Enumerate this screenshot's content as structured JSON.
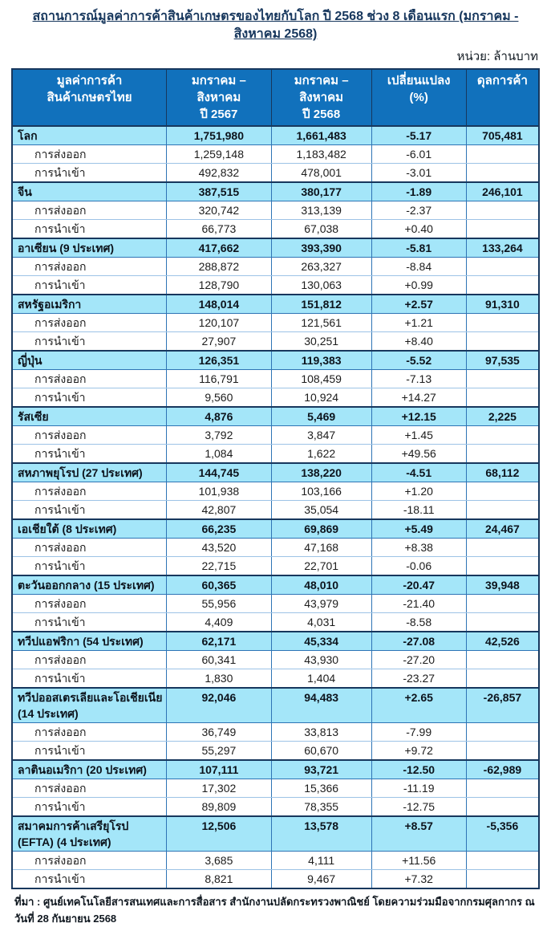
{
  "title": "สถานการณ์มูลค่าการค้าสินค้าเกษตรของไทยกับโลก ปี 2568 ช่วง 8 เดือนแรก (มกราคม - สิงหาคม 2568)",
  "unit_label": "หน่วย: ล้านบาท",
  "columns": [
    {
      "line1": "มูลค่าการค้า",
      "line2": "สินค้าเกษตรไทย"
    },
    {
      "line1": "มกราคม – สิงหาคม",
      "line2": "ปี 2567"
    },
    {
      "line1": "มกราคม – สิงหาคม",
      "line2": "ปี 2568"
    },
    {
      "line1": "เปลี่ยนแปลง",
      "line2": "(%)"
    },
    {
      "line1": "ดุลการค้า",
      "line2": ""
    }
  ],
  "row_labels": {
    "export": "การส่งออก",
    "import": "การนำเข้า"
  },
  "regions": [
    {
      "name": "โลก",
      "y2567": "1,751,980",
      "y2568": "1,661,483",
      "change": "-5.17",
      "balance": "705,481",
      "export": {
        "y2567": "1,259,148",
        "y2568": "1,183,482",
        "change": "-6.01"
      },
      "import": {
        "y2567": "492,832",
        "y2568": "478,001",
        "change": "-3.01"
      }
    },
    {
      "name": "จีน",
      "y2567": "387,515",
      "y2568": "380,177",
      "change": "-1.89",
      "balance": "246,101",
      "export": {
        "y2567": "320,742",
        "y2568": "313,139",
        "change": "-2.37"
      },
      "import": {
        "y2567": "66,773",
        "y2568": "67,038",
        "change": "+0.40"
      }
    },
    {
      "name": "อาเซียน (9 ประเทศ)",
      "y2567": "417,662",
      "y2568": "393,390",
      "change": "-5.81",
      "balance": "133,264",
      "export": {
        "y2567": "288,872",
        "y2568": "263,327",
        "change": "-8.84"
      },
      "import": {
        "y2567": "128,790",
        "y2568": "130,063",
        "change": "+0.99"
      }
    },
    {
      "name": "สหรัฐอเมริกา",
      "y2567": "148,014",
      "y2568": "151,812",
      "change": "+2.57",
      "balance": "91,310",
      "export": {
        "y2567": "120,107",
        "y2568": "121,561",
        "change": "+1.21"
      },
      "import": {
        "y2567": "27,907",
        "y2568": "30,251",
        "change": "+8.40"
      }
    },
    {
      "name": "ญี่ปุ่น",
      "y2567": "126,351",
      "y2568": "119,383",
      "change": "-5.52",
      "balance": "97,535",
      "export": {
        "y2567": "116,791",
        "y2568": "108,459",
        "change": "-7.13"
      },
      "import": {
        "y2567": "9,560",
        "y2568": "10,924",
        "change": "+14.27"
      }
    },
    {
      "name": "รัสเซีย",
      "y2567": "4,876",
      "y2568": "5,469",
      "change": "+12.15",
      "balance": "2,225",
      "export": {
        "y2567": "3,792",
        "y2568": "3,847",
        "change": "+1.45"
      },
      "import": {
        "y2567": "1,084",
        "y2568": "1,622",
        "change": "+49.56"
      }
    },
    {
      "name": "สหภาพยุโรป (27 ประเทศ)",
      "y2567": "144,745",
      "y2568": "138,220",
      "change": "-4.51",
      "balance": "68,112",
      "export": {
        "y2567": "101,938",
        "y2568": "103,166",
        "change": "+1.20"
      },
      "import": {
        "y2567": "42,807",
        "y2568": "35,054",
        "change": "-18.11"
      }
    },
    {
      "name": "เอเชียใต้ (8 ประเทศ)",
      "y2567": "66,235",
      "y2568": "69,869",
      "change": "+5.49",
      "balance": "24,467",
      "export": {
        "y2567": "43,520",
        "y2568": "47,168",
        "change": "+8.38"
      },
      "import": {
        "y2567": "22,715",
        "y2568": "22,701",
        "change": "-0.06"
      }
    },
    {
      "name": "ตะวันออกกลาง (15 ประเทศ)",
      "y2567": "60,365",
      "y2568": "48,010",
      "change": "-20.47",
      "balance": "39,948",
      "export": {
        "y2567": "55,956",
        "y2568": "43,979",
        "change": "-21.40"
      },
      "import": {
        "y2567": "4,409",
        "y2568": "4,031",
        "change": "-8.58"
      }
    },
    {
      "name": "ทวีปแอฟริกา (54 ประเทศ)",
      "y2567": "62,171",
      "y2568": "45,334",
      "change": "-27.08",
      "balance": "42,526",
      "export": {
        "y2567": "60,341",
        "y2568": "43,930",
        "change": "-27.20"
      },
      "import": {
        "y2567": "1,830",
        "y2568": "1,404",
        "change": "-23.27"
      }
    },
    {
      "name": "ทวีปออสเตรเลียและโอเชียเนีย (14 ประเทศ)",
      "y2567": "92,046",
      "y2568": "94,483",
      "change": "+2.65",
      "balance": "-26,857",
      "export": {
        "y2567": "36,749",
        "y2568": "33,813",
        "change": "-7.99"
      },
      "import": {
        "y2567": "55,297",
        "y2568": "60,670",
        "change": "+9.72"
      }
    },
    {
      "name": "ลาตินอเมริกา (20 ประเทศ)",
      "y2567": "107,111",
      "y2568": "93,721",
      "change": "-12.50",
      "balance": "-62,989",
      "export": {
        "y2567": "17,302",
        "y2568": "15,366",
        "change": "-11.19"
      },
      "import": {
        "y2567": "89,809",
        "y2568": "78,355",
        "change": "-12.75"
      }
    },
    {
      "name": "สมาคมการค้าเสรียุโรป (EFTA) (4 ประเทศ)",
      "y2567": "12,506",
      "y2568": "13,578",
      "change": "+8.57",
      "balance": "-5,356",
      "export": {
        "y2567": "3,685",
        "y2568": "4,111",
        "change": "+11.56"
      },
      "import": {
        "y2567": "8,821",
        "y2568": "9,467",
        "change": "+7.32"
      }
    }
  ],
  "source": "ที่มา : ศูนย์เทคโนโลยีสารสนเทศและการสื่อสาร สำนักงานปลัดกระทรวงพาณิชย์ โดยความร่วมมือจากกรมศุลกากร ณ วันที่ 28 กันยายน 2568",
  "colors": {
    "header_bg": "#1171BC",
    "region_bg": "#A4E6F9",
    "empty_bg": "#EEF1F6",
    "frame": "#17375D",
    "grid": "#2E74B5",
    "subgrid": "#9DC3E6",
    "title_color": "#17375D"
  }
}
